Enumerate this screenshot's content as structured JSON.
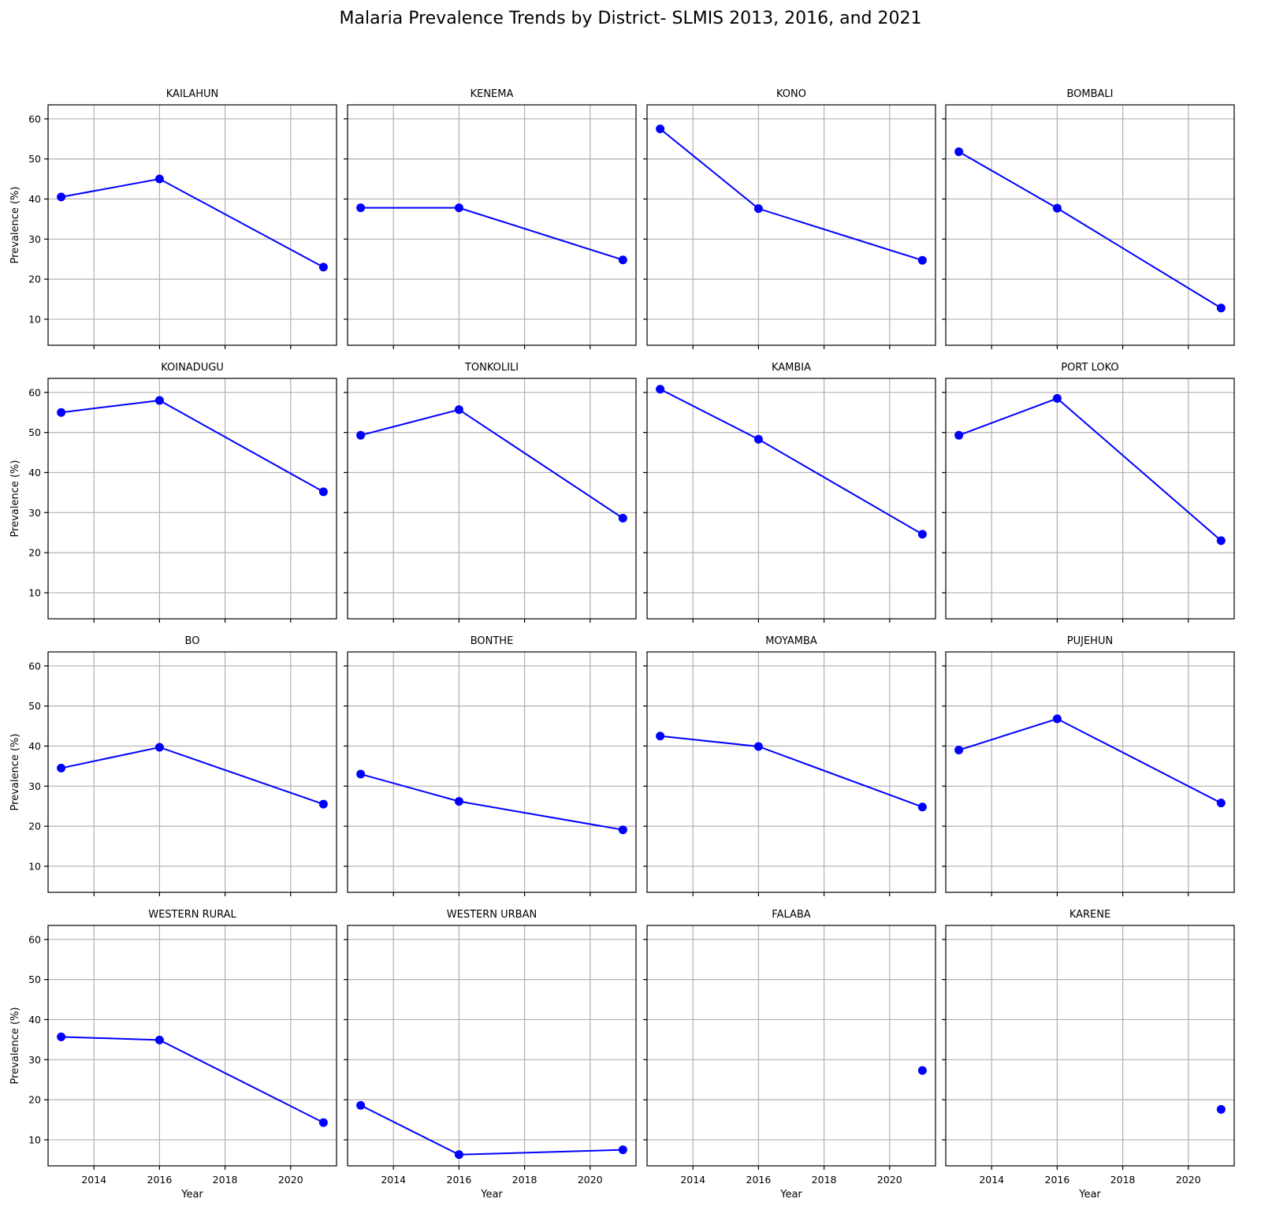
{
  "title": "Malaria Prevalence Trends by District- SLMIS 2013, 2016, and 2021",
  "chart_data": {
    "type": "line",
    "layout": "small-multiples 4x4",
    "xlabel": "Year",
    "ylabel": "Prevalence (%)",
    "xlim": [
      2012.6,
      2021.4
    ],
    "ylim": [
      3.5,
      63.5
    ],
    "xticks": [
      2014,
      2016,
      2018,
      2020
    ],
    "yticks": [
      10,
      20,
      30,
      40,
      50,
      60
    ],
    "grid": true,
    "color": "#0000ff",
    "marker": "circle",
    "panels": [
      {
        "district": "KAILAHUN",
        "x": [
          2013,
          2016,
          2021
        ],
        "y": [
          40.5,
          45.0,
          23.0
        ]
      },
      {
        "district": "KENEMA",
        "x": [
          2013,
          2016,
          2021
        ],
        "y": [
          37.8,
          37.8,
          24.8
        ]
      },
      {
        "district": "KONO",
        "x": [
          2013,
          2016,
          2021
        ],
        "y": [
          57.5,
          37.6,
          24.7
        ]
      },
      {
        "district": "BOMBALI",
        "x": [
          2013,
          2016,
          2021
        ],
        "y": [
          51.8,
          37.7,
          12.8
        ]
      },
      {
        "district": "KOINADUGU",
        "x": [
          2013,
          2016,
          2021
        ],
        "y": [
          55.0,
          58.0,
          35.2
        ]
      },
      {
        "district": "TONKOLILI",
        "x": [
          2013,
          2016,
          2021
        ],
        "y": [
          49.3,
          55.7,
          28.6
        ]
      },
      {
        "district": "KAMBIA",
        "x": [
          2013,
          2016,
          2021
        ],
        "y": [
          60.8,
          48.3,
          24.6
        ]
      },
      {
        "district": "PORT LOKO",
        "x": [
          2013,
          2016,
          2021
        ],
        "y": [
          49.3,
          58.5,
          23.0
        ]
      },
      {
        "district": "BO",
        "x": [
          2013,
          2016,
          2021
        ],
        "y": [
          34.5,
          39.7,
          25.5
        ]
      },
      {
        "district": "BONTHE",
        "x": [
          2013,
          2016,
          2021
        ],
        "y": [
          33.0,
          26.2,
          19.1
        ]
      },
      {
        "district": "MOYAMBA",
        "x": [
          2013,
          2016,
          2021
        ],
        "y": [
          42.5,
          39.9,
          24.8
        ]
      },
      {
        "district": "PUJEHUN",
        "x": [
          2013,
          2016,
          2021
        ],
        "y": [
          39.0,
          46.8,
          25.8
        ]
      },
      {
        "district": "WESTERN RURAL",
        "x": [
          2013,
          2016,
          2021
        ],
        "y": [
          35.7,
          34.9,
          14.3
        ]
      },
      {
        "district": "WESTERN URBAN",
        "x": [
          2013,
          2016,
          2021
        ],
        "y": [
          18.6,
          6.3,
          7.5
        ]
      },
      {
        "district": "FALABA",
        "x": [
          2021
        ],
        "y": [
          27.3
        ]
      },
      {
        "district": "KARENE",
        "x": [
          2021
        ],
        "y": [
          17.6
        ]
      }
    ]
  }
}
